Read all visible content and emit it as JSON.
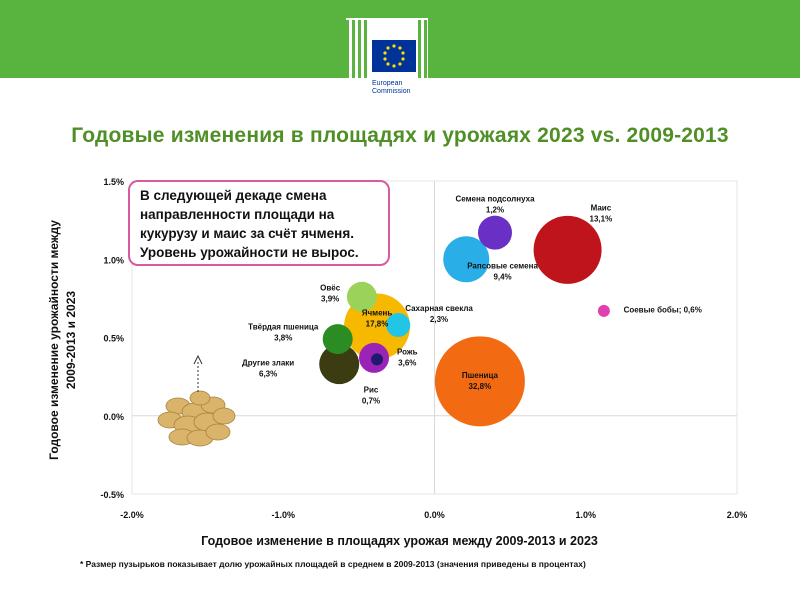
{
  "header": {
    "logo_text_line1": "European",
    "logo_text_line2": "Commission"
  },
  "title": "Годовые изменения  в площадях и урожаях 2023 vs. 2009-2013",
  "note_lines": [
    "В следующей декаде смена",
    "направленности площади на",
    "кукурузу и маис за счёт ячменя.",
    "Уровень урожайности не вырос."
  ],
  "footnote": "* Размер пузырьков  показывает долю урожайных площадей в среднем в 2009-2013 (значения приведены в процентах)",
  "colors": {
    "header_green": "#58b33f",
    "title_green": "#4f8f25",
    "note_border": "#d85aa0"
  },
  "chart_data": {
    "type": "scatter",
    "xlabel": "Годовое изменение в площадях урожая между 2009-2013 и 2023",
    "ylabel_line1": "Годовое изменение урожайности между",
    "ylabel_line2": "2009-2013 и 2023",
    "xlim": [
      -2.0,
      2.0
    ],
    "ylim": [
      -0.5,
      1.5
    ],
    "x_ticks": [
      "-2.0%",
      "-1.0%",
      "0.0%",
      "1.0%",
      "2.0%"
    ],
    "y_ticks": [
      "1.5%",
      "1.0%",
      "0.5%",
      "0.0%",
      "-0.5%"
    ],
    "grid": false,
    "points": [
      {
        "name": "Семена подсолнуха",
        "value": "1,2%",
        "x": 0.4,
        "y": 1.17,
        "r": 17,
        "color": "#6a2fc4"
      },
      {
        "name": "Маис",
        "value": "13,1%",
        "x": 0.88,
        "y": 1.06,
        "r": 34,
        "color": "#c0141c"
      },
      {
        "name": "Рапсовые семена",
        "value": "9,4%",
        "x": 0.21,
        "y": 1.0,
        "r": 23,
        "color": "#29aee8"
      },
      {
        "name": "Соевые бобы; 0,6%",
        "value": "",
        "x": 1.12,
        "y": 0.67,
        "r": 6,
        "color": "#e040b0"
      },
      {
        "name": "Овёс",
        "value": "3,9%",
        "x": -0.48,
        "y": 0.76,
        "r": 15,
        "color": "#9ad25a"
      },
      {
        "name": "Ячмень",
        "value": "17,8%",
        "x": -0.38,
        "y": 0.57,
        "r": 33,
        "color": "#f7b800"
      },
      {
        "name": "Сахарная свекла",
        "value": "2,3%",
        "x": -0.24,
        "y": 0.58,
        "r": 12,
        "color": "#22c5e6"
      },
      {
        "name": "Твёрдая пшеница",
        "value": "3,8%",
        "x": -0.64,
        "y": 0.49,
        "r": 15,
        "color": "#2a8c22"
      },
      {
        "name": "Другие злаки",
        "value": "6,3%",
        "x": -0.63,
        "y": 0.33,
        "r": 20,
        "color": "#3c3c12"
      },
      {
        "name": "Рожь",
        "value": "3,6%",
        "x": -0.4,
        "y": 0.37,
        "r": 15,
        "color": "#9b24b8"
      },
      {
        "name": "Рис",
        "value": "0,7%",
        "x": -0.38,
        "y": 0.36,
        "r": 6,
        "color": "#1f1a6e"
      },
      {
        "name": "Пшеница",
        "value": "32,8%",
        "x": 0.3,
        "y": 0.22,
        "r": 45,
        "color": "#f26b12"
      }
    ],
    "labels": [
      {
        "lines": [
          "Семена подсолнуха",
          "1,2%"
        ],
        "x": 0.4,
        "y": 1.37,
        "anchor": "middle"
      },
      {
        "lines": [
          "Маис",
          "13,1%"
        ],
        "x": 1.1,
        "y": 1.31,
        "anchor": "middle"
      },
      {
        "lines": [
          "Рапсовые семена",
          "9,4%"
        ],
        "x": 0.45,
        "y": 0.94,
        "anchor": "middle"
      },
      {
        "lines": [
          "Соевые бобы; 0,6%"
        ],
        "x": 1.25,
        "y": 0.66,
        "anchor": "start"
      },
      {
        "lines": [
          "Овёс",
          "3,9%"
        ],
        "x": -0.69,
        "y": 0.8,
        "anchor": "middle"
      },
      {
        "lines": [
          "Ячмень",
          "17,8%"
        ],
        "x": -0.38,
        "y": 0.64,
        "anchor": "middle"
      },
      {
        "lines": [
          "Сахарная свекла",
          "2,3%"
        ],
        "x": 0.03,
        "y": 0.67,
        "anchor": "middle"
      },
      {
        "lines": [
          "Твёрдая пшеница",
          "3,8%"
        ],
        "x": -1.0,
        "y": 0.55,
        "anchor": "middle"
      },
      {
        "lines": [
          "Другие злаки",
          "6,3%"
        ],
        "x": -1.1,
        "y": 0.32,
        "anchor": "middle"
      },
      {
        "lines": [
          "Рожь",
          "3,6%"
        ],
        "x": -0.18,
        "y": 0.39,
        "anchor": "middle"
      },
      {
        "lines": [
          "Рис",
          "0,7%"
        ],
        "x": -0.42,
        "y": 0.15,
        "anchor": "middle"
      },
      {
        "lines": [
          "Пшеница",
          "32,8%"
        ],
        "x": 0.3,
        "y": 0.24,
        "anchor": "middle"
      }
    ]
  }
}
